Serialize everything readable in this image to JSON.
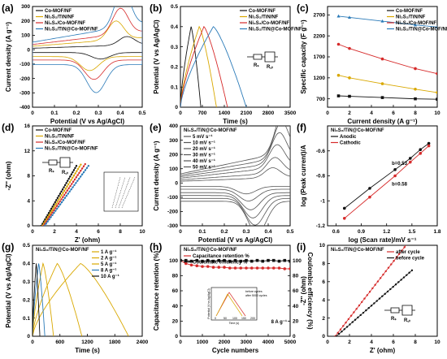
{
  "figure": {
    "colors": {
      "black": "#111111",
      "red": "#d62a2a",
      "yellow": "#d9a800",
      "blue": "#2a7ab8",
      "gray": "#555555"
    }
  },
  "chart_data": [
    {
      "id": "a",
      "type": "line",
      "tag": "(a)",
      "xlabel": "Potential (V vs Ag/AgCl)",
      "ylabel": "Current density (A g⁻¹)",
      "xlim": [
        0.0,
        0.5
      ],
      "ylim": [
        -400,
        300
      ],
      "xticks": [
        0.0,
        0.1,
        0.2,
        0.3,
        0.4,
        0.5
      ],
      "yticks": [
        -400,
        -300,
        -200,
        -100,
        0,
        100,
        200,
        300
      ],
      "legend_position": "top-left",
      "series": [
        {
          "name": "Co-MOF/NF",
          "color": "black",
          "shape": "cv",
          "vmin": 0.0,
          "vmax": 0.5,
          "ampl": 25,
          "peak": 60,
          "peakAt": 0.43
        },
        {
          "name": "Ni₃S₂/TiN/NF",
          "color": "yellow",
          "shape": "cv",
          "vmin": 0.0,
          "vmax": 0.5,
          "ampl": 60,
          "peak": 130,
          "peakAt": 0.38
        },
        {
          "name": "Ni₃S₂/Co-MOF/NF",
          "color": "red",
          "shape": "cv",
          "vmin": 0.0,
          "vmax": 0.5,
          "ampl": 90,
          "peak": 180,
          "peakAt": 0.4
        },
        {
          "name": "Ni₃S₂/TiN@Co-MOF/NF",
          "color": "blue",
          "shape": "cv",
          "vmin": 0.0,
          "vmax": 0.5,
          "ampl": 130,
          "peak": 260,
          "peakAt": 0.41
        }
      ]
    },
    {
      "id": "b",
      "type": "line",
      "tag": "(b)",
      "xlabel": "Time (s)",
      "ylabel": "Potential (V vs Ag/AgCl)",
      "xlim": [
        0,
        3500
      ],
      "ylim": [
        0.0,
        0.5
      ],
      "xticks": [
        0,
        700,
        1400,
        2100,
        2800,
        3500
      ],
      "yticks": [
        0.0,
        0.1,
        0.2,
        0.3,
        0.4,
        0.5
      ],
      "legend_position": "top-right",
      "series": [
        {
          "name": "Co-MOF/NF",
          "color": "black",
          "shape": "gcd",
          "tc": 340,
          "td": 650,
          "vmax": 0.4
        },
        {
          "name": "Ni₃S₂/TiN/NF",
          "color": "yellow",
          "shape": "gcd",
          "tc": 600,
          "td": 1150,
          "vmax": 0.4
        },
        {
          "name": "Ni₃S₂/Co-MOF/NF",
          "color": "red",
          "shape": "gcd",
          "tc": 750,
          "td": 1500,
          "vmax": 0.4
        },
        {
          "name": "Ni₃S₂/TiN@Co-MOF/NF",
          "color": "blue",
          "shape": "gcd",
          "tc": 1050,
          "td": 2100,
          "vmax": 0.4
        }
      ],
      "circuit_labels": [
        "Rₛ",
        "R꜀ₜ"
      ]
    },
    {
      "id": "c",
      "type": "line",
      "tag": "(c)",
      "xlabel": "Current density (A g⁻¹)",
      "ylabel": "Specific capacity (F g⁻¹)",
      "xlim": [
        0,
        10
      ],
      "ylim": [
        500,
        2900
      ],
      "xticks": [
        0,
        2,
        4,
        6,
        8,
        10
      ],
      "yticks": [
        700,
        1200,
        1700,
        2200,
        2700
      ],
      "legend_position": "top-right",
      "x": [
        1,
        2,
        5,
        8,
        10
      ],
      "series": [
        {
          "name": "Co-MOF/NF",
          "color": "black",
          "marker": "square",
          "values": [
            770,
            760,
            730,
            700,
            690
          ]
        },
        {
          "name": "Ni₃S₂/TiN/NF",
          "color": "yellow",
          "marker": "circle",
          "values": [
            1260,
            1200,
            1060,
            930,
            850
          ]
        },
        {
          "name": "Ni₃S₂/Co-MOF/NF",
          "color": "red",
          "marker": "circle",
          "values": [
            2000,
            1900,
            1650,
            1420,
            1300
          ]
        },
        {
          "name": "Ni₃S₂/TiN@Co-MOF/NF",
          "color": "blue",
          "marker": "triangle",
          "values": [
            2670,
            2640,
            2550,
            2460,
            2410
          ]
        }
      ]
    },
    {
      "id": "d",
      "type": "scatter",
      "tag": "(d)",
      "xlabel": "Z' (ohm)",
      "ylabel": "-Z'' (ohm)",
      "xlim": [
        0,
        10
      ],
      "ylim": [
        0,
        16
      ],
      "xticks": [
        0,
        2,
        4,
        6,
        8,
        10
      ],
      "yticks": [
        0,
        4,
        8,
        12,
        16
      ],
      "legend_position": "top-left",
      "series": [
        {
          "name": "Co-MOF/NF",
          "color": "black",
          "shape": "nyq",
          "x0": 0.8,
          "slope": 3.0,
          "len": 3.2
        },
        {
          "name": "Ni₃S₂/TiN/NF",
          "color": "yellow",
          "shape": "nyq",
          "x0": 0.9,
          "slope": 2.8,
          "len": 3.5
        },
        {
          "name": "Ni₃S₂/Co-MOF/NF",
          "color": "red",
          "shape": "nyq",
          "x0": 1.0,
          "slope": 2.6,
          "len": 3.8
        },
        {
          "name": "Ni₃S₂/TiN@Co-MOF/NF",
          "color": "blue",
          "shape": "nyq",
          "x0": 1.1,
          "slope": 2.4,
          "len": 4.0
        }
      ],
      "circuit_labels": [
        "Rₛ",
        "R꜀ₜ"
      ]
    },
    {
      "id": "e",
      "type": "line",
      "tag": "(e)",
      "xlabel": "Potential (V vs Ag/AgCl)",
      "ylabel": "Current density (A g⁻¹)",
      "xlim": [
        0.0,
        0.5
      ],
      "ylim": [
        -300,
        400
      ],
      "xticks": [
        0.0,
        0.1,
        0.2,
        0.3,
        0.4,
        0.5
      ],
      "yticks": [
        -300,
        -200,
        -100,
        0,
        100,
        200,
        300,
        400
      ],
      "legend_position": "top-left",
      "annotation": "Ni₃S₂/TiN@Co-MOF/NF",
      "series": [
        {
          "name": "5 mV s⁻¹",
          "color": "gray",
          "shape": "cv",
          "vmin": 0.0,
          "vmax": 0.5,
          "ampl": 30,
          "peak": 70,
          "peakAt": 0.42
        },
        {
          "name": "10 mV s⁻¹",
          "color": "gray",
          "shape": "cv",
          "vmin": 0.0,
          "vmax": 0.5,
          "ampl": 55,
          "peak": 110,
          "peakAt": 0.43
        },
        {
          "name": "20 mV s⁻¹",
          "color": "gray",
          "shape": "cv",
          "vmin": 0.0,
          "vmax": 0.5,
          "ampl": 85,
          "peak": 160,
          "peakAt": 0.44
        },
        {
          "name": "30 mV s⁻¹",
          "color": "gray",
          "shape": "cv",
          "vmin": 0.0,
          "vmax": 0.5,
          "ampl": 110,
          "peak": 210,
          "peakAt": 0.45
        },
        {
          "name": "40 mV s⁻¹",
          "color": "gray",
          "shape": "cv",
          "vmin": 0.0,
          "vmax": 0.5,
          "ampl": 135,
          "peak": 250,
          "peakAt": 0.46
        },
        {
          "name": "50 mV s⁻¹",
          "color": "gray",
          "shape": "cv",
          "vmin": 0.0,
          "vmax": 0.5,
          "ampl": 160,
          "peak": 300,
          "peakAt": 0.47
        }
      ]
    },
    {
      "id": "f",
      "type": "scatter",
      "tag": "(f)",
      "xlabel": "log (Scan rate)/mV s⁻¹",
      "ylabel": "log (Peak current)/A",
      "xlim": [
        0.5,
        1.8
      ],
      "ylim": [
        -1.2,
        -0.4
      ],
      "xticks": [
        0.6,
        0.9,
        1.2,
        1.5,
        1.8
      ],
      "yticks": [
        -1.2,
        -1.0,
        -0.8,
        -0.6
      ],
      "legend_position": "top-left",
      "annotation": "Ni₃S₂/TiN@Co-MOF/NF",
      "x": [
        0.7,
        1.0,
        1.3,
        1.48,
        1.6,
        1.7
      ],
      "series": [
        {
          "name": "Anodic",
          "color": "black",
          "marker": "circle",
          "values": [
            -1.06,
            -0.9,
            -0.75,
            -0.66,
            -0.59,
            -0.54
          ],
          "label": "b=0.53"
        },
        {
          "name": "Cathodic",
          "color": "red",
          "marker": "circle",
          "values": [
            -1.14,
            -0.97,
            -0.8,
            -0.69,
            -0.62,
            -0.56
          ],
          "label": "b=0.58"
        }
      ]
    },
    {
      "id": "g",
      "type": "line",
      "tag": "(g)",
      "xlabel": "Time (s)",
      "ylabel": "Potential (V vs Ag/AgCl)",
      "xlim": [
        0,
        2400
      ],
      "ylim": [
        0.0,
        0.5
      ],
      "xticks": [
        0,
        600,
        1200,
        1800,
        2400
      ],
      "yticks": [
        0.0,
        0.1,
        0.2,
        0.3,
        0.4,
        0.5
      ],
      "legend_position": "top-right",
      "annotation": "Ni₃S₂/TiN@Co-MOF/NF",
      "series": [
        {
          "name": "1 A g⁻¹",
          "color": "yellow",
          "shape": "gcd",
          "tc": 1050,
          "td": 2100,
          "vmax": 0.4
        },
        {
          "name": "2 A g⁻¹",
          "color": "yellow",
          "shape": "gcd",
          "tc": 540,
          "td": 1080,
          "vmax": 0.4
        },
        {
          "name": "5 A g⁻¹",
          "color": "yellow",
          "shape": "gcd",
          "tc": 230,
          "td": 460,
          "vmax": 0.4
        },
        {
          "name": "8 A g⁻¹",
          "color": "blue",
          "shape": "gcd",
          "tc": 135,
          "td": 270,
          "vmax": 0.4
        },
        {
          "name": "10 A g⁻¹",
          "color": "black",
          "shape": "gcd",
          "tc": 80,
          "td": 160,
          "vmax": 0.4
        }
      ]
    },
    {
      "id": "h",
      "type": "scatter",
      "tag": "(h)",
      "xlabel": "Cycle numbers",
      "ylabel": "Capacitance retention (%)",
      "y2label": "Coulombic efficiency (%)",
      "xlim": [
        0,
        5000
      ],
      "ylim": [
        0,
        120
      ],
      "y2lim": [
        0,
        120
      ],
      "xticks": [
        0,
        1000,
        2000,
        3000,
        4000,
        5000
      ],
      "yticks": [
        0,
        20,
        40,
        60,
        80,
        100
      ],
      "y2ticks": [
        0,
        20,
        40,
        60,
        80,
        100
      ],
      "legend_position": "top-left",
      "annotation": "Ni₃S₂/TiN@Co-MOF/NF",
      "inset_note": "8 A g⁻¹",
      "x": [
        0,
        250,
        500,
        750,
        1000,
        1250,
        1500,
        1750,
        2000,
        2250,
        2500,
        2750,
        3000,
        3250,
        3500,
        3750,
        4000,
        4250,
        4500,
        4750,
        5000
      ],
      "series": [
        {
          "name": "Capacitance retention %",
          "color": "red",
          "marker": "circle",
          "values": [
            100,
            96,
            94,
            93,
            92,
            92,
            91,
            91,
            91,
            90,
            90,
            90,
            90,
            90,
            90,
            90,
            90,
            90,
            90,
            89,
            89
          ]
        },
        {
          "name": "Coulombic efficiency %",
          "color": "black",
          "marker": "square",
          "values": [
            100,
            100,
            99,
            100,
            99,
            100,
            99,
            100,
            100,
            99,
            100,
            99,
            100,
            99,
            100,
            99,
            100,
            100,
            99,
            100,
            99
          ]
        }
      ],
      "inset": {
        "xlabel": "Time (s)",
        "ylabel": "Potential (V vs Ag/AgCl)",
        "legend": [
          "before cycles",
          "after 5000 cycles"
        ],
        "xticks": [
          0,
          50,
          100,
          150,
          200
        ]
      }
    },
    {
      "id": "i",
      "type": "scatter",
      "tag": "(i)",
      "xlabel": "Z' (ohm)",
      "ylabel": "-Z'' (ohm)",
      "xlim": [
        0,
        10
      ],
      "ylim": [
        0,
        10
      ],
      "xticks": [
        0,
        2,
        4,
        6,
        8,
        10
      ],
      "yticks": [
        0,
        2,
        4,
        6,
        8,
        10
      ],
      "legend_position": "top-right",
      "annotation": "Ni₃S₂/TiN@Co-MOF/NF",
      "series": [
        {
          "name": "after cycle",
          "color": "red",
          "shape": "nyq",
          "x0": 0.7,
          "slope": 1.55,
          "len": 6.8
        },
        {
          "name": "before cycle",
          "color": "black",
          "shape": "nyq",
          "x0": 0.8,
          "slope": 1.05,
          "len": 6.9
        }
      ],
      "circuit_labels": [
        "Rₛ",
        "R꜀ₜ"
      ]
    }
  ]
}
